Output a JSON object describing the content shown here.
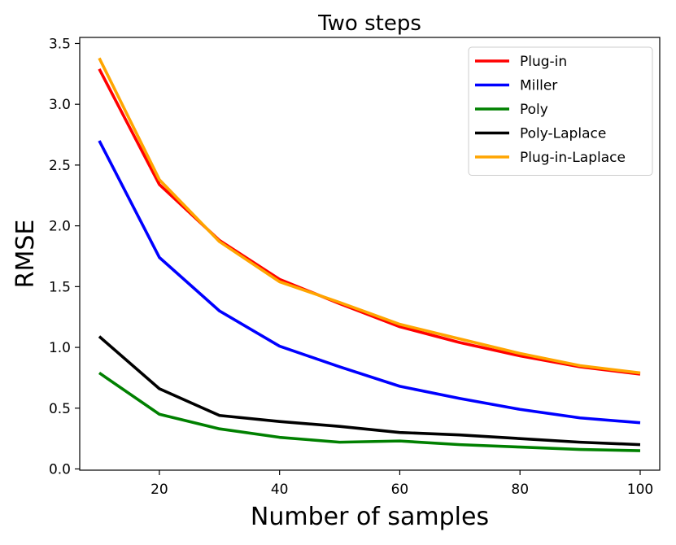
{
  "chart_data": {
    "type": "line",
    "title": "Two steps",
    "xlabel": "Number of samples",
    "ylabel": "RMSE",
    "xlim": [
      6.75,
      103.25
    ],
    "ylim": [
      -0.01,
      3.55
    ],
    "xticks": [
      20,
      40,
      60,
      80,
      100
    ],
    "yticks": [
      0.0,
      0.5,
      1.0,
      1.5,
      2.0,
      2.5,
      3.0,
      3.5
    ],
    "xtick_labels": [
      "20",
      "40",
      "60",
      "80",
      "100"
    ],
    "ytick_labels": [
      "0.0",
      "0.5",
      "1.0",
      "1.5",
      "2.0",
      "2.5",
      "3.0",
      "3.5"
    ],
    "grid": false,
    "legend_position": "top-right",
    "x": [
      10,
      20,
      30,
      40,
      50,
      60,
      70,
      80,
      90,
      100
    ],
    "series": [
      {
        "name": "Plug-in",
        "color": "#ff0000",
        "values": [
          3.29,
          2.34,
          1.88,
          1.56,
          1.36,
          1.17,
          1.04,
          0.93,
          0.84,
          0.78
        ]
      },
      {
        "name": "Miller",
        "color": "#0000ff",
        "values": [
          2.7,
          1.74,
          1.3,
          1.01,
          0.84,
          0.68,
          0.58,
          0.49,
          0.42,
          0.38
        ]
      },
      {
        "name": "Poly",
        "color": "#008000",
        "values": [
          0.79,
          0.45,
          0.33,
          0.26,
          0.22,
          0.23,
          0.2,
          0.18,
          0.16,
          0.15
        ]
      },
      {
        "name": "Poly-Laplace",
        "color": "#000000",
        "values": [
          1.09,
          0.66,
          0.44,
          0.39,
          0.35,
          0.3,
          0.28,
          0.25,
          0.22,
          0.2
        ]
      },
      {
        "name": "Plug-in-Laplace",
        "color": "#ffa500",
        "values": [
          3.38,
          2.38,
          1.87,
          1.54,
          1.37,
          1.19,
          1.07,
          0.95,
          0.85,
          0.79
        ]
      }
    ]
  }
}
